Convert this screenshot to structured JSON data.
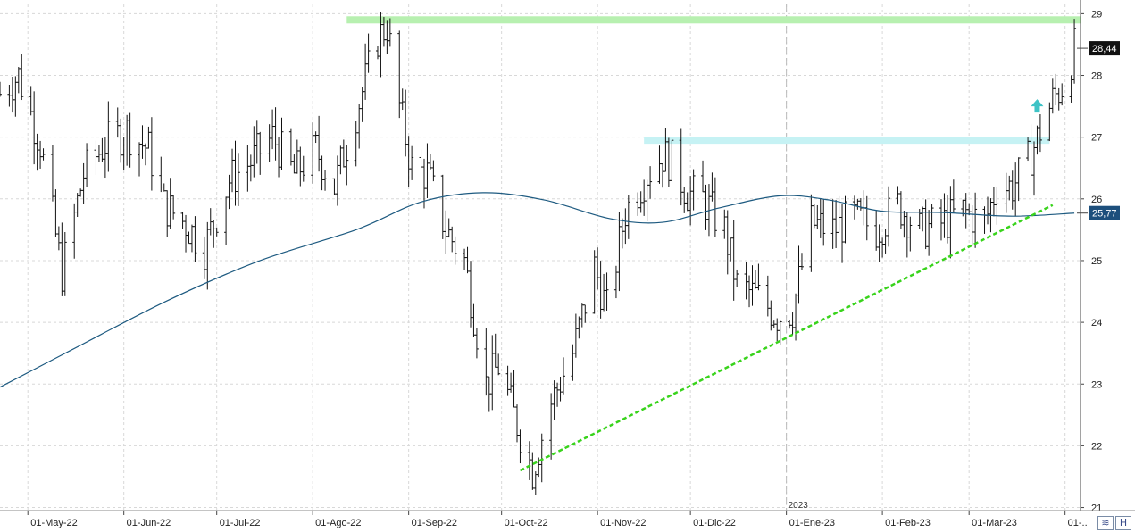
{
  "chart_data": {
    "type": "ohlc",
    "y_axis": {
      "ticks": [
        "29",
        "28",
        "27",
        "26",
        "25",
        "24",
        "23",
        "22",
        "21"
      ],
      "range": [
        20.95,
        29.15
      ],
      "position": "right"
    },
    "x_axis": {
      "ticks": [
        {
          "label": "01-May-22",
          "x": "2022-05-01"
        },
        {
          "label": "01-Jun-22",
          "x": "2022-06-01"
        },
        {
          "label": "01-Jul-22",
          "x": "2022-07-01"
        },
        {
          "label": "01-Ago-22",
          "x": "2022-08-01"
        },
        {
          "label": "01-Sep-22",
          "x": "2022-09-01"
        },
        {
          "label": "01-Oct-22",
          "x": "2022-10-01"
        },
        {
          "label": "01-Nov-22",
          "x": "2022-11-01"
        },
        {
          "label": "01-Dic-22",
          "x": "2022-12-01"
        },
        {
          "label": "01-Ene-23",
          "x": "2023-01-01"
        },
        {
          "label": "01-Feb-23",
          "x": "2023-02-01"
        },
        {
          "label": "01-Mar-23",
          "x": "2023-03-01"
        },
        {
          "label": "01-..",
          "x": "2023-04-01"
        }
      ],
      "range": [
        "2022-04-22",
        "2023-04-06"
      ],
      "year_separator": {
        "label": "2023",
        "x": "2023-01-01"
      }
    },
    "grid": true,
    "price_path": [
      [
        "2022-04-22",
        27.7
      ],
      [
        "2022-04-28",
        28.0
      ],
      [
        "2022-05-05",
        26.9
      ],
      [
        "2022-05-12",
        24.8
      ],
      [
        "2022-05-19",
        26.4
      ],
      [
        "2022-05-26",
        26.9
      ],
      [
        "2022-06-02",
        27.1
      ],
      [
        "2022-06-09",
        26.8
      ],
      [
        "2022-06-14",
        25.9
      ],
      [
        "2022-06-21",
        25.6
      ],
      [
        "2022-06-27",
        25.2
      ],
      [
        "2022-07-05",
        26.3
      ],
      [
        "2022-07-12",
        26.6
      ],
      [
        "2022-07-19",
        27.0
      ],
      [
        "2022-07-26",
        26.4
      ],
      [
        "2022-08-02",
        26.8
      ],
      [
        "2022-08-08",
        26.2
      ],
      [
        "2022-08-15",
        27.4
      ],
      [
        "2022-08-22",
        28.6
      ],
      [
        "2022-08-25",
        28.8
      ],
      [
        "2022-08-29",
        27.5
      ],
      [
        "2022-09-02",
        26.5
      ],
      [
        "2022-09-07",
        26.4
      ],
      [
        "2022-09-13",
        25.5
      ],
      [
        "2022-09-19",
        25.0
      ],
      [
        "2022-09-26",
        23.0
      ],
      [
        "2022-09-30",
        23.3
      ],
      [
        "2022-10-05",
        22.5
      ],
      [
        "2022-10-11",
        21.6
      ],
      [
        "2022-10-17",
        22.7
      ],
      [
        "2022-10-24",
        23.5
      ],
      [
        "2022-10-31",
        24.9
      ],
      [
        "2022-11-04",
        24.2
      ],
      [
        "2022-11-10",
        25.8
      ],
      [
        "2022-11-17",
        26.4
      ],
      [
        "2022-11-22",
        26.7
      ],
      [
        "2022-11-25",
        26.6
      ],
      [
        "2022-11-30",
        26.1
      ],
      [
        "2022-12-05",
        26.0
      ],
      [
        "2022-12-12",
        25.5
      ],
      [
        "2022-12-16",
        24.6
      ],
      [
        "2022-12-23",
        24.4
      ],
      [
        "2022-12-29",
        24.1
      ],
      [
        "2023-01-03",
        24.2
      ],
      [
        "2023-01-09",
        25.6
      ],
      [
        "2023-01-16",
        25.5
      ],
      [
        "2023-01-23",
        25.7
      ],
      [
        "2023-01-30",
        25.5
      ],
      [
        "2023-02-06",
        25.9
      ],
      [
        "2023-02-13",
        25.5
      ],
      [
        "2023-02-20",
        25.6
      ],
      [
        "2023-02-27",
        25.8
      ],
      [
        "2023-03-06",
        25.6
      ],
      [
        "2023-03-10",
        26.2
      ],
      [
        "2023-03-15",
        26.2
      ],
      [
        "2023-03-20",
        26.6
      ],
      [
        "2023-03-24",
        27.1
      ],
      [
        "2023-03-28",
        27.6
      ],
      [
        "2023-04-01",
        27.9
      ],
      [
        "2023-04-04",
        28.44
      ]
    ],
    "moving_average": [
      [
        "2022-04-22",
        22.95
      ],
      [
        "2022-05-15",
        23.55
      ],
      [
        "2022-06-15",
        24.35
      ],
      [
        "2022-07-15",
        25.0
      ],
      [
        "2022-08-15",
        25.5
      ],
      [
        "2022-09-05",
        25.95
      ],
      [
        "2022-09-25",
        26.1
      ],
      [
        "2022-10-15",
        25.98
      ],
      [
        "2022-11-05",
        25.68
      ],
      [
        "2022-11-22",
        25.62
      ],
      [
        "2022-12-10",
        25.85
      ],
      [
        "2022-12-30",
        26.05
      ],
      [
        "2023-01-15",
        25.98
      ],
      [
        "2023-02-01",
        25.8
      ],
      [
        "2023-02-20",
        25.78
      ],
      [
        "2023-03-15",
        25.72
      ],
      [
        "2023-04-04",
        25.77
      ]
    ],
    "resistance_zones": [
      {
        "from": "2022-08-12",
        "to": "2023-04-06",
        "level": 28.9,
        "color": "#b7f0b0"
      },
      {
        "from": "2022-11-16",
        "to": "2023-03-27",
        "level": 26.95,
        "color": "#c6f2f4"
      }
    ],
    "trendline": {
      "from": [
        "2022-10-07",
        21.6
      ],
      "to": [
        "2023-03-28",
        25.9
      ],
      "color": "#39d31c"
    },
    "annotations": [
      {
        "type": "arrow-up",
        "x": "2023-03-23",
        "y": 27.5,
        "color": "#3ec3c6"
      }
    ],
    "price_labels": [
      {
        "value": "28,44",
        "y": 28.44,
        "color": "#111111"
      },
      {
        "value": "25,77",
        "y": 25.77,
        "color": "#1d4f7c"
      }
    ],
    "colors": {
      "bars": "#111111",
      "moving_average": "#1d5a80",
      "grid": "#d8d8d8"
    }
  }
}
